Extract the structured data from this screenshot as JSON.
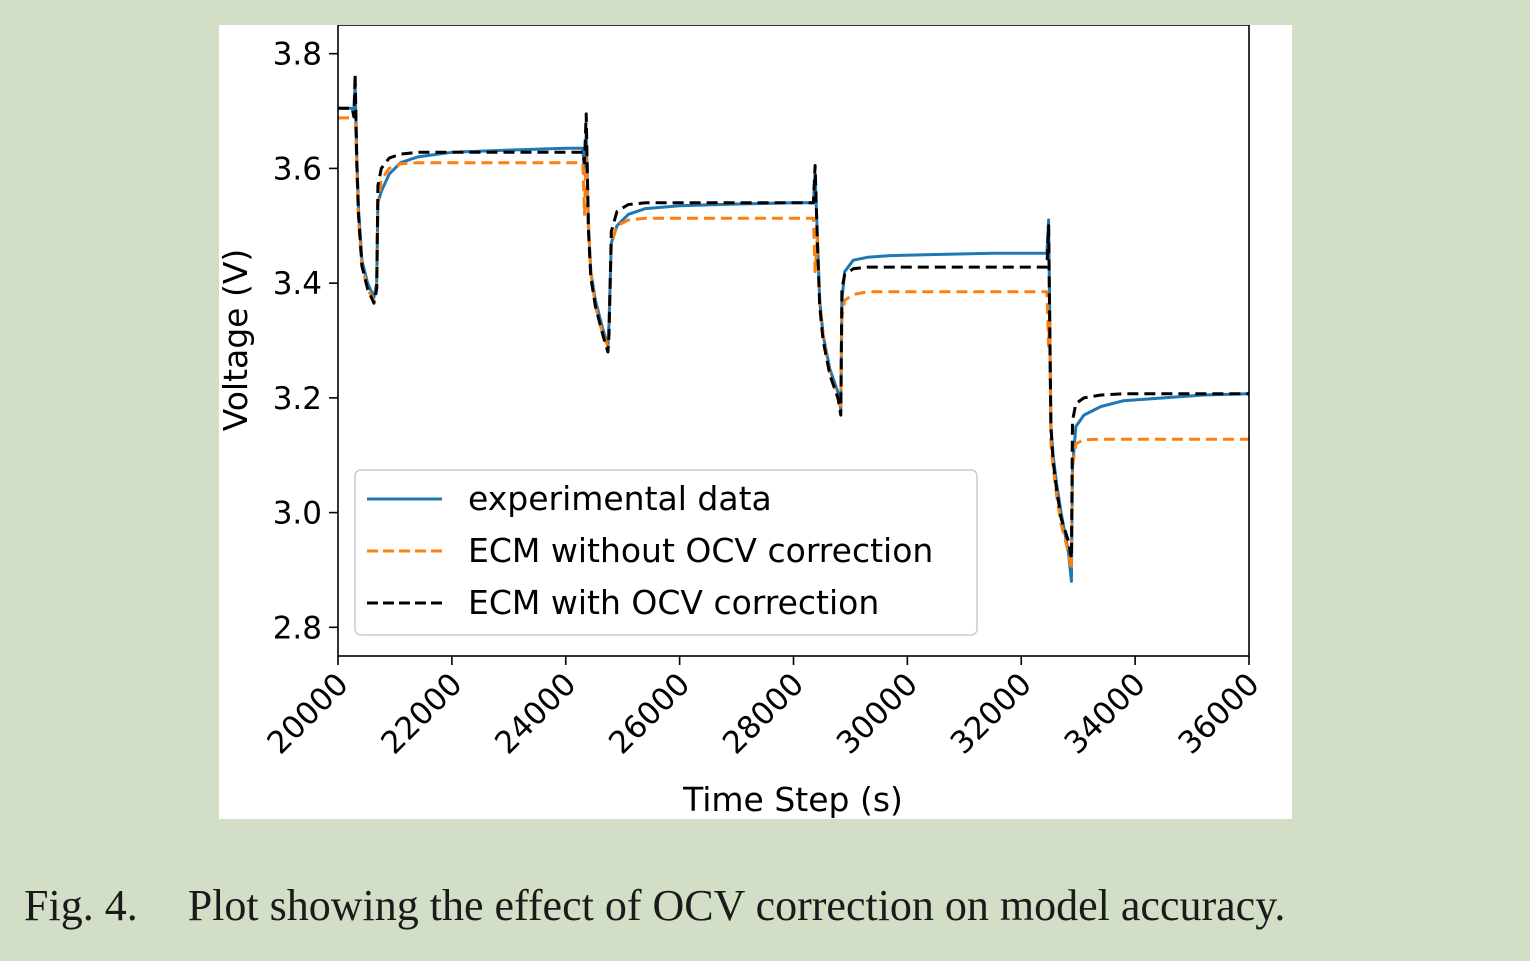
{
  "caption": {
    "number": "Fig. 4.",
    "text": "Plot showing the effect of OCV correction on model accuracy."
  },
  "chart_data": {
    "type": "line",
    "title": "",
    "xlabel": "Time Step (s)",
    "ylabel": "Voltage (V)",
    "xlim": [
      20000,
      36000
    ],
    "ylim": [
      2.75,
      3.85
    ],
    "xticks": [
      20000,
      22000,
      24000,
      26000,
      28000,
      30000,
      32000,
      34000,
      36000
    ],
    "yticks": [
      2.8,
      3.0,
      3.2,
      3.4,
      3.6,
      3.8
    ],
    "xtick_labels": [
      "20000",
      "22000",
      "24000",
      "26000",
      "28000",
      "30000",
      "32000",
      "34000",
      "36000"
    ],
    "ytick_labels": [
      "2.8",
      "3.0",
      "3.2",
      "3.4",
      "3.6",
      "3.8"
    ],
    "grid": false,
    "legend_position": "lower-left",
    "series": [
      {
        "name": "experimental data",
        "color": "#1f77b4",
        "style": "solid",
        "x": [
          20000,
          20250,
          20280,
          20300,
          20330,
          20360,
          20420,
          20520,
          20630,
          20680,
          20700,
          20760,
          20900,
          21100,
          21400,
          22000,
          23000,
          24000,
          24300,
          24330,
          24360,
          24400,
          24440,
          24520,
          24650,
          24740,
          24760,
          24800,
          24900,
          25100,
          25400,
          26000,
          27000,
          28000,
          28350,
          28380,
          28420,
          28460,
          28520,
          28640,
          28780,
          28830,
          28850,
          28900,
          29050,
          29300,
          29700,
          30500,
          31500,
          32450,
          32480,
          32500,
          32520,
          32560,
          32620,
          32700,
          32830,
          32880,
          32900,
          32960,
          33100,
          33400,
          33800,
          34500,
          35200,
          36000
        ],
        "y": [
          3.705,
          3.705,
          3.69,
          3.75,
          3.62,
          3.53,
          3.44,
          3.4,
          3.375,
          3.4,
          3.54,
          3.56,
          3.59,
          3.61,
          3.62,
          3.628,
          3.632,
          3.635,
          3.635,
          3.59,
          3.66,
          3.5,
          3.42,
          3.37,
          3.32,
          3.29,
          3.33,
          3.47,
          3.5,
          3.52,
          3.53,
          3.535,
          3.538,
          3.54,
          3.54,
          3.59,
          3.48,
          3.37,
          3.31,
          3.25,
          3.21,
          3.18,
          3.37,
          3.42,
          3.44,
          3.445,
          3.448,
          3.45,
          3.452,
          3.452,
          3.51,
          3.35,
          3.15,
          3.1,
          3.05,
          3.0,
          2.93,
          2.88,
          3.08,
          3.15,
          3.17,
          3.185,
          3.195,
          3.2,
          3.205,
          3.207
        ]
      },
      {
        "name": "ECM without OCV correction",
        "color": "#ff7f0e",
        "style": "dashed",
        "x": [
          20000,
          20250,
          20280,
          20300,
          20330,
          20360,
          20420,
          20520,
          20630,
          20680,
          20700,
          20760,
          20900,
          21100,
          21400,
          22000,
          23000,
          24000,
          24300,
          24330,
          24360,
          24400,
          24440,
          24520,
          24650,
          24740,
          24760,
          24800,
          24900,
          25100,
          25400,
          26000,
          27000,
          28000,
          28350,
          28380,
          28420,
          28460,
          28520,
          28640,
          28780,
          28830,
          28850,
          28900,
          29050,
          29300,
          29700,
          30500,
          31500,
          32450,
          32480,
          32500,
          32520,
          32560,
          32620,
          32700,
          32830,
          32880,
          32900,
          32960,
          33100,
          33400,
          33800,
          34500,
          35200,
          36000
        ],
        "y": [
          3.688,
          3.688,
          3.69,
          3.7,
          3.6,
          3.51,
          3.43,
          3.39,
          3.37,
          3.39,
          3.54,
          3.58,
          3.6,
          3.608,
          3.61,
          3.61,
          3.61,
          3.61,
          3.61,
          3.52,
          3.62,
          3.5,
          3.42,
          3.36,
          3.31,
          3.29,
          3.32,
          3.47,
          3.5,
          3.51,
          3.513,
          3.513,
          3.513,
          3.513,
          3.513,
          3.42,
          3.48,
          3.37,
          3.31,
          3.24,
          3.2,
          3.18,
          3.34,
          3.37,
          3.38,
          3.385,
          3.385,
          3.385,
          3.385,
          3.385,
          3.29,
          3.35,
          3.12,
          3.08,
          3.03,
          2.98,
          2.93,
          2.9,
          3.08,
          3.12,
          3.127,
          3.128,
          3.128,
          3.128,
          3.128,
          3.128
        ]
      },
      {
        "name": "ECM with OCV correction",
        "color": "#000000",
        "style": "dashed",
        "x": [
          20000,
          20250,
          20280,
          20300,
          20330,
          20360,
          20420,
          20520,
          20630,
          20680,
          20700,
          20760,
          20900,
          21100,
          21400,
          22000,
          23000,
          24000,
          24300,
          24330,
          24360,
          24400,
          24440,
          24520,
          24650,
          24740,
          24760,
          24800,
          24900,
          25100,
          25400,
          26000,
          27000,
          28000,
          28350,
          28380,
          28420,
          28460,
          28520,
          28640,
          28780,
          28830,
          28850,
          28900,
          29050,
          29300,
          29700,
          30500,
          31500,
          32450,
          32480,
          32500,
          32520,
          32560,
          32620,
          32700,
          32830,
          32880,
          32900,
          32960,
          33100,
          33400,
          33800,
          34500,
          35200,
          36000
        ],
        "y": [
          3.705,
          3.705,
          3.69,
          3.765,
          3.61,
          3.52,
          3.43,
          3.39,
          3.365,
          3.39,
          3.57,
          3.6,
          3.618,
          3.625,
          3.628,
          3.628,
          3.628,
          3.628,
          3.628,
          3.61,
          3.695,
          3.49,
          3.41,
          3.36,
          3.31,
          3.28,
          3.31,
          3.49,
          3.525,
          3.537,
          3.54,
          3.54,
          3.54,
          3.54,
          3.54,
          3.605,
          3.47,
          3.36,
          3.3,
          3.24,
          3.2,
          3.17,
          3.39,
          3.415,
          3.425,
          3.428,
          3.428,
          3.428,
          3.428,
          3.428,
          3.5,
          3.33,
          3.15,
          3.09,
          3.04,
          2.99,
          2.95,
          2.92,
          3.16,
          3.19,
          3.2,
          3.205,
          3.207,
          3.207,
          3.207,
          3.207
        ]
      }
    ]
  }
}
